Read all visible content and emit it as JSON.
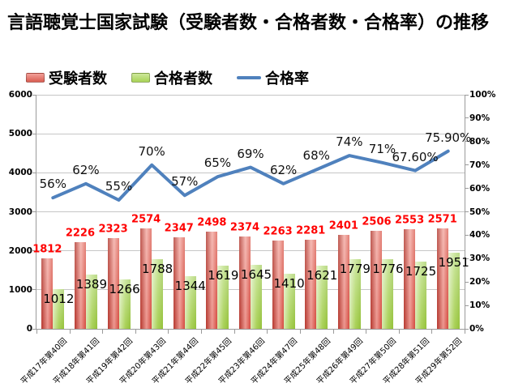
{
  "title": "言語聴覚士国家試験（受験者数・合格者数・合格率）の推移",
  "legend": {
    "items": [
      {
        "label": "受験者数",
        "type": "bar",
        "color": "#e2665b"
      },
      {
        "label": "合格者数",
        "type": "bar",
        "color": "#b3d96c"
      },
      {
        "label": "合格率",
        "type": "line",
        "color": "#4f81bd"
      }
    ]
  },
  "chart_data": {
    "type": "bar+line",
    "title": "言語聴覚士国家試験（受験者数・合格者数・合格率）の推移",
    "categories": [
      "平成17年第40回",
      "平成18年第41回",
      "平成19年第42回",
      "平成20年第43回",
      "平成21年第44回",
      "平成22年第45回",
      "平成23年第46回",
      "平成24年第47回",
      "平成25年第48回",
      "平成26年第49回",
      "平成27年第50回",
      "平成28年第51回",
      "平成29年第52回"
    ],
    "series": [
      {
        "name": "受験者数",
        "type": "bar",
        "axis": "left",
        "color": "#e2665b",
        "values": [
          1812,
          2226,
          2323,
          2574,
          2347,
          2498,
          2374,
          2263,
          2281,
          2401,
          2506,
          2553,
          2571
        ]
      },
      {
        "name": "合格者数",
        "type": "bar",
        "axis": "left",
        "color": "#9cca3e",
        "values": [
          1012,
          1389,
          1266,
          1788,
          1344,
          1619,
          1645,
          1410,
          1621,
          1779,
          1776,
          1725,
          1951
        ]
      },
      {
        "name": "合格率",
        "type": "line",
        "axis": "right",
        "color": "#4f81bd",
        "values": [
          56,
          62,
          55,
          70,
          57,
          65,
          69,
          62,
          68,
          74,
          71,
          67.6,
          75.9
        ],
        "point_labels": [
          "56%",
          "62%",
          "55%",
          "70%",
          "57%",
          "65%",
          "69%",
          "62%",
          "68%",
          "74%",
          "71%",
          "67.60%",
          "75.90%"
        ]
      }
    ],
    "left_axis": {
      "min": 0,
      "max": 6000,
      "step": 1000,
      "labels": [
        "0",
        "1000",
        "2000",
        "3000",
        "4000",
        "5000",
        "6000"
      ]
    },
    "right_axis": {
      "min": 0,
      "max": 100,
      "step": 10,
      "labels": [
        "0%",
        "10%",
        "20%",
        "30%",
        "40%",
        "50%",
        "60%",
        "70%",
        "80%",
        "90%",
        "100%"
      ]
    },
    "grid": true,
    "legend_position": "top-left"
  }
}
